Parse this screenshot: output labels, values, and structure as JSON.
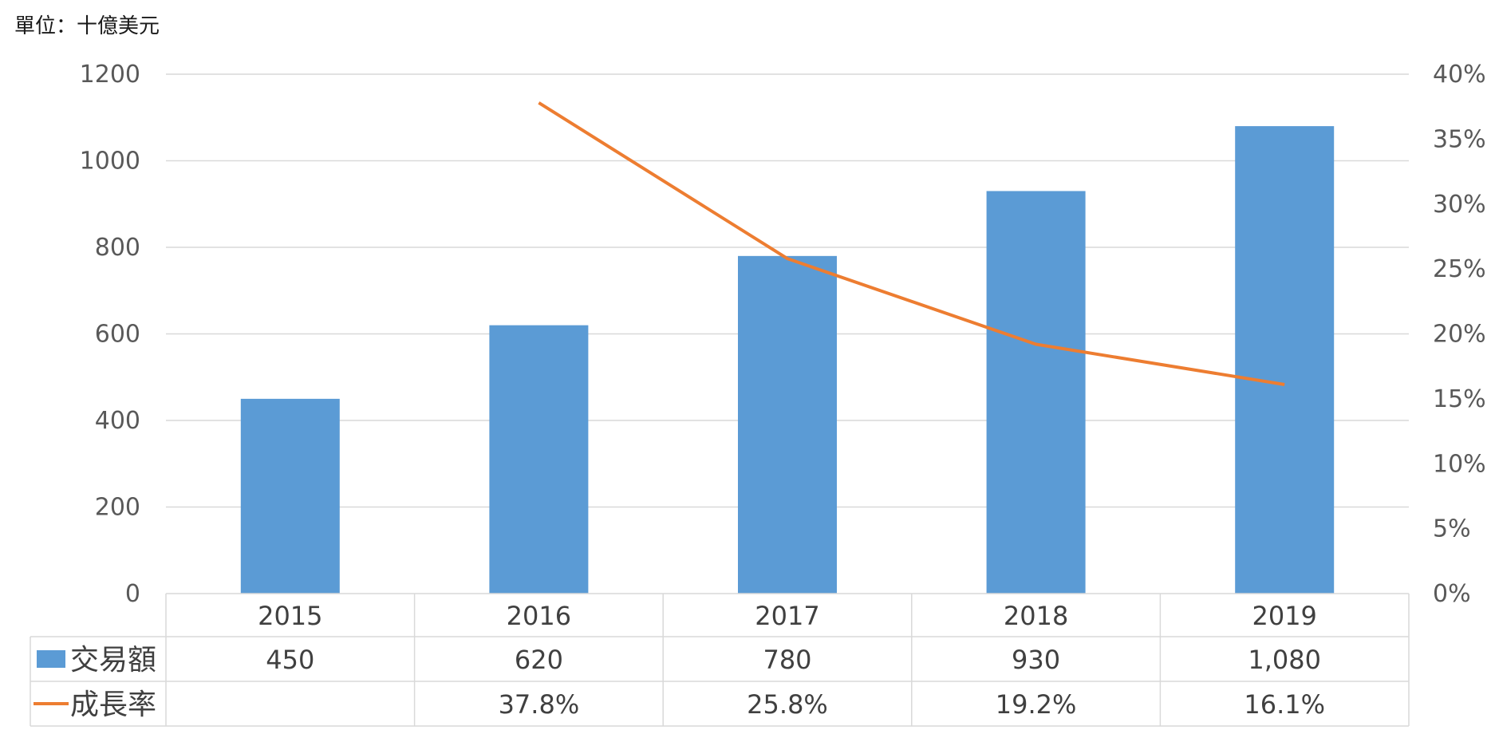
{
  "unit_label": "單位：十億美元",
  "chart_data": {
    "type": "bar",
    "categories": [
      "2015",
      "2016",
      "2017",
      "2018",
      "2019"
    ],
    "series": [
      {
        "name": "交易額",
        "type": "bar",
        "axis": "left",
        "color": "#5B9BD5",
        "values": [
          450,
          620,
          780,
          930,
          1080
        ],
        "labels": [
          "450",
          "620",
          "780",
          "930",
          "1,080"
        ]
      },
      {
        "name": "成長率",
        "type": "line",
        "axis": "right",
        "color": "#ED7D31",
        "values": [
          null,
          37.8,
          25.8,
          19.2,
          16.1
        ],
        "labels": [
          "",
          "37.8%",
          "25.8%",
          "19.2%",
          "16.1%"
        ]
      }
    ],
    "y_left": {
      "min": 0,
      "max": 1200,
      "ticks": [
        0,
        200,
        400,
        600,
        800,
        1000,
        1200
      ]
    },
    "y_right": {
      "min": 0,
      "max": 40,
      "ticks": [
        "0%",
        "5%",
        "10%",
        "15%",
        "20%",
        "25%",
        "30%",
        "35%",
        "40%"
      ]
    },
    "grid": true,
    "data_table": true
  }
}
